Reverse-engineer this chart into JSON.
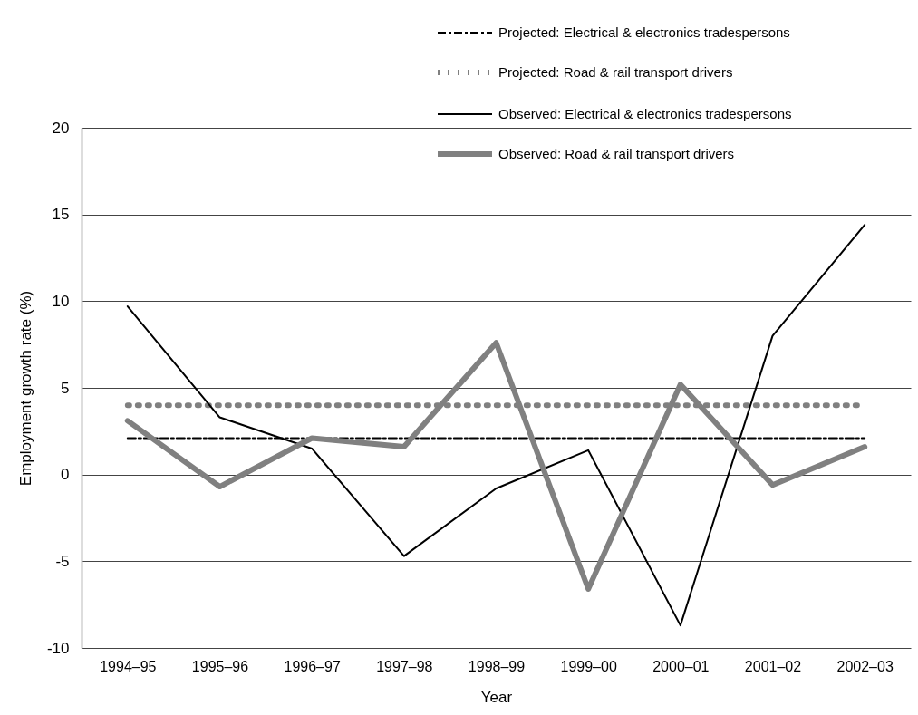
{
  "chart_data": {
    "type": "line",
    "xlabel": "Year",
    "ylabel": "Employment growth rate (%)",
    "categories": [
      "1994–95",
      "1995–96",
      "1996–97",
      "1997–98",
      "1998–99",
      "1999–00",
      "2000–01",
      "2001–02",
      "2002–03"
    ],
    "series": [
      {
        "name": "Projected: Electrical & electronics tradespersons",
        "color": "#000000",
        "line_style": "dashed",
        "values": [
          2.1,
          2.1,
          2.1,
          2.1,
          2.1,
          2.1,
          2.1,
          2.1,
          2.1
        ]
      },
      {
        "name": "Projected: Road & rail transport drivers",
        "color": "#808080",
        "line_style": "dotted",
        "values": [
          4.0,
          4.0,
          4.0,
          4.0,
          4.0,
          4.0,
          4.0,
          4.0,
          4.0
        ]
      },
      {
        "name": "Observed: Electrical & electronics tradespersons",
        "color": "#000000",
        "line_style": "solid",
        "values": [
          9.7,
          3.3,
          1.5,
          -4.7,
          -0.8,
          1.4,
          -8.7,
          8.0,
          14.4
        ]
      },
      {
        "name": "Observed: Road & rail transport drivers",
        "color": "#808080",
        "line_style": "solid",
        "values": [
          3.1,
          -0.7,
          2.1,
          1.6,
          7.6,
          -6.6,
          5.2,
          -0.6,
          1.6
        ]
      }
    ],
    "ylim": [
      -10,
      20
    ],
    "yticks": [
      -10,
      -5,
      0,
      5,
      10,
      15,
      20
    ],
    "grid": "y",
    "legend": "top right",
    "marker": "none"
  }
}
